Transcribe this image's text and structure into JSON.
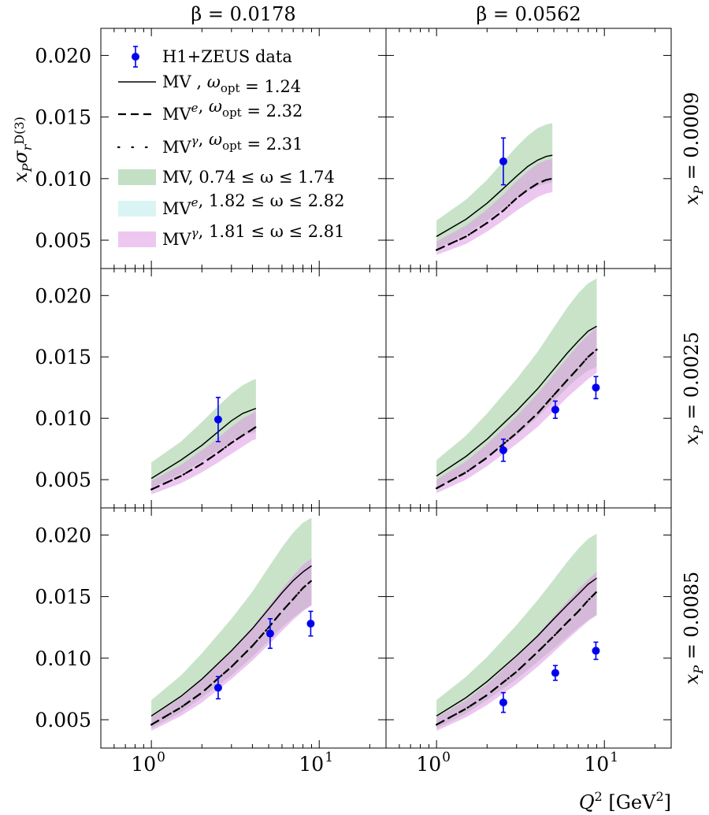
{
  "chart_data": {
    "type": "line",
    "grid": false,
    "x_scale": "log",
    "xlim": [
      0.5,
      25
    ],
    "ylim": [
      0.0027,
      0.0222
    ],
    "xlabel": "Q² [GeV²]",
    "ylabel": "x_P σ_r^D(3)",
    "x_ticks": [
      {
        "value": 1,
        "base": "10",
        "exp": "0"
      },
      {
        "value": 10,
        "base": "10",
        "exp": "1"
      }
    ],
    "y_ticks": [
      {
        "value": 0.005,
        "label": "0.005"
      },
      {
        "value": 0.01,
        "label": "0.010"
      },
      {
        "value": 0.015,
        "label": "0.015"
      },
      {
        "value": 0.02,
        "label": "0.020"
      }
    ],
    "column_labels": [
      "β = 0.0178",
      "β = 0.0562"
    ],
    "row_labels": [
      "x_P = 0.0009",
      "x_P = 0.0025",
      "x_P = 0.0085"
    ],
    "legend": {
      "placement": "top-left",
      "entries": [
        {
          "key": "data",
          "style": "point",
          "label": "H1+ZEUS data"
        },
        {
          "key": "mv",
          "style": "solid",
          "label": "MV , ω_opt = 1.24"
        },
        {
          "key": "mve",
          "style": "dashed",
          "label": "MV^e, ω_opt = 2.32"
        },
        {
          "key": "mvg",
          "style": "dotted",
          "label": "MV^γ, ω_opt = 2.31"
        },
        {
          "key": "band_mv",
          "style": "band",
          "color": "#9ccc9c",
          "label": "MV, 0.74 ≤ ω ≤ 1.74"
        },
        {
          "key": "band_mve",
          "style": "band",
          "color": "#c2ecec",
          "label": "MV^e, 1.82 ≤ ω ≤ 2.82"
        },
        {
          "key": "band_mvg",
          "style": "band",
          "color": "#e2a2e8",
          "label": "MV^γ, 1.81 ≤ ω ≤ 2.81"
        }
      ]
    },
    "colors": {
      "band_mv": "#9ccc9c",
      "band_mvg": "#dd99e4",
      "data": "#0000ee",
      "curve": "#000000"
    },
    "panels": [
      {
        "row": 0,
        "col": 0,
        "x": [],
        "mv": [],
        "mv_lo": [],
        "mv_hi": [],
        "mve": [],
        "mvg": [],
        "mvg_lo": [],
        "mvg_hi": [],
        "data": []
      },
      {
        "row": 0,
        "col": 1,
        "x": [
          1.0,
          1.5,
          2.0,
          2.5,
          3.0,
          3.5,
          4.0,
          4.5,
          4.9
        ],
        "mv": [
          0.0053,
          0.0067,
          0.008,
          0.0092,
          0.0102,
          0.011,
          0.0115,
          0.0118,
          0.0119
        ],
        "mv_lo": [
          0.0043,
          0.0055,
          0.0066,
          0.0076,
          0.0084,
          0.009,
          0.0094,
          0.0096,
          0.0097
        ],
        "mv_hi": [
          0.0066,
          0.0083,
          0.0099,
          0.0114,
          0.0126,
          0.0135,
          0.0141,
          0.0144,
          0.0145
        ],
        "mve": [
          0.0042,
          0.0053,
          0.0064,
          0.0074,
          0.0084,
          0.0091,
          0.0096,
          0.0099,
          0.01
        ],
        "mvg": [
          0.0042,
          0.0053,
          0.0064,
          0.0074,
          0.0084,
          0.0091,
          0.0096,
          0.0099,
          0.01
        ],
        "mvg_lo": [
          0.0038,
          0.0047,
          0.0057,
          0.0066,
          0.0074,
          0.008,
          0.0085,
          0.0088,
          0.0089
        ],
        "mvg_hi": [
          0.0049,
          0.0062,
          0.0075,
          0.0087,
          0.0098,
          0.0106,
          0.0112,
          0.0115,
          0.0116
        ],
        "data": [
          {
            "x": 2.5,
            "y": 0.0114,
            "err": 0.0019
          }
        ]
      },
      {
        "row": 1,
        "col": 0,
        "x": [
          1.0,
          1.5,
          2.0,
          2.5,
          3.0,
          3.5,
          4.0,
          4.2
        ],
        "mv": [
          0.0051,
          0.0066,
          0.0078,
          0.0089,
          0.0098,
          0.0104,
          0.0107,
          0.0108
        ],
        "mv_lo": [
          0.0043,
          0.0055,
          0.0065,
          0.0074,
          0.0081,
          0.0086,
          0.0088,
          0.0089
        ],
        "mv_hi": [
          0.0064,
          0.0081,
          0.0097,
          0.011,
          0.012,
          0.0127,
          0.0131,
          0.0132
        ],
        "mve": [
          0.0042,
          0.0053,
          0.0063,
          0.0072,
          0.008,
          0.0086,
          0.0091,
          0.0093
        ],
        "mvg": [
          0.0042,
          0.0053,
          0.0063,
          0.0072,
          0.008,
          0.0086,
          0.0091,
          0.0093
        ],
        "mvg_lo": [
          0.0038,
          0.0047,
          0.0056,
          0.0064,
          0.0071,
          0.0077,
          0.0082,
          0.0083
        ],
        "mvg_hi": [
          0.0049,
          0.0062,
          0.0074,
          0.0084,
          0.0093,
          0.01,
          0.0104,
          0.0106
        ],
        "data": [
          {
            "x": 2.5,
            "y": 0.0099,
            "err": 0.0018
          }
        ]
      },
      {
        "row": 1,
        "col": 1,
        "x": [
          1.0,
          1.5,
          2.0,
          3.0,
          4.0,
          5.0,
          6.0,
          7.0,
          8.0,
          9.0
        ],
        "mv": [
          0.0053,
          0.0069,
          0.0083,
          0.0106,
          0.0124,
          0.014,
          0.0153,
          0.0163,
          0.0171,
          0.0175
        ],
        "mv_lo": [
          0.0043,
          0.0056,
          0.0068,
          0.0086,
          0.0101,
          0.0114,
          0.0125,
          0.0133,
          0.0139,
          0.0142
        ],
        "mv_hi": [
          0.0066,
          0.0086,
          0.0104,
          0.0132,
          0.0154,
          0.0174,
          0.019,
          0.0202,
          0.021,
          0.0214
        ],
        "mve": [
          0.0043,
          0.0056,
          0.0068,
          0.0088,
          0.0104,
          0.0119,
          0.0131,
          0.0141,
          0.015,
          0.0156
        ],
        "mvg": [
          0.0043,
          0.0056,
          0.0068,
          0.0088,
          0.0104,
          0.0119,
          0.0131,
          0.0141,
          0.015,
          0.0156
        ],
        "mvg_lo": [
          0.0039,
          0.005,
          0.0061,
          0.0079,
          0.0093,
          0.0106,
          0.0117,
          0.0125,
          0.0132,
          0.0137
        ],
        "mvg_hi": [
          0.005,
          0.0065,
          0.0079,
          0.0102,
          0.012,
          0.0136,
          0.0149,
          0.016,
          0.0168,
          0.0174
        ],
        "data": [
          {
            "x": 2.5,
            "y": 0.0074,
            "err": 0.0009
          },
          {
            "x": 5.1,
            "y": 0.0107,
            "err": 0.0007
          },
          {
            "x": 8.9,
            "y": 0.0125,
            "err": 0.0009
          }
        ]
      },
      {
        "row": 2,
        "col": 0,
        "x": [
          1.0,
          1.5,
          2.0,
          3.0,
          4.0,
          5.0,
          6.0,
          7.0,
          8.0,
          9.0
        ],
        "mv": [
          0.0053,
          0.0069,
          0.0083,
          0.0106,
          0.0124,
          0.014,
          0.0153,
          0.0163,
          0.017,
          0.0175
        ],
        "mv_lo": [
          0.0043,
          0.0056,
          0.0068,
          0.0086,
          0.0101,
          0.0114,
          0.0125,
          0.0133,
          0.0139,
          0.0143
        ],
        "mv_hi": [
          0.0066,
          0.0086,
          0.0104,
          0.0132,
          0.0154,
          0.0174,
          0.019,
          0.0202,
          0.021,
          0.0214
        ],
        "mve": [
          0.0046,
          0.006,
          0.0072,
          0.0093,
          0.011,
          0.0125,
          0.0138,
          0.0148,
          0.0157,
          0.0163
        ],
        "mvg": [
          0.0046,
          0.006,
          0.0072,
          0.0093,
          0.011,
          0.0125,
          0.0138,
          0.0148,
          0.0157,
          0.0163
        ],
        "mvg_lo": [
          0.0041,
          0.0053,
          0.0064,
          0.0083,
          0.0098,
          0.0111,
          0.0122,
          0.0131,
          0.0138,
          0.0143
        ],
        "mvg_hi": [
          0.0052,
          0.0068,
          0.0082,
          0.0106,
          0.0125,
          0.0142,
          0.0156,
          0.0167,
          0.0176,
          0.0181
        ],
        "data": [
          {
            "x": 2.5,
            "y": 0.0076,
            "err": 0.0009
          },
          {
            "x": 5.1,
            "y": 0.012,
            "err": 0.0012
          },
          {
            "x": 8.9,
            "y": 0.0128,
            "err": 0.001
          }
        ]
      },
      {
        "row": 2,
        "col": 1,
        "x": [
          1.0,
          1.5,
          2.0,
          3.0,
          4.0,
          5.0,
          6.0,
          7.0,
          8.0,
          9.0
        ],
        "mv": [
          0.0053,
          0.0068,
          0.0081,
          0.0102,
          0.0118,
          0.0132,
          0.0143,
          0.0152,
          0.016,
          0.0165
        ],
        "mv_lo": [
          0.0043,
          0.0055,
          0.0066,
          0.0083,
          0.0097,
          0.0108,
          0.0117,
          0.0125,
          0.0131,
          0.0135
        ],
        "mv_hi": [
          0.0066,
          0.0085,
          0.0101,
          0.0127,
          0.0147,
          0.0164,
          0.0178,
          0.0189,
          0.0197,
          0.0201
        ],
        "mve": [
          0.0046,
          0.0059,
          0.007,
          0.0089,
          0.0105,
          0.0118,
          0.0129,
          0.0138,
          0.0147,
          0.0154
        ],
        "mvg": [
          0.0046,
          0.0059,
          0.007,
          0.0089,
          0.0105,
          0.0118,
          0.0129,
          0.0138,
          0.0147,
          0.0154
        ],
        "mvg_lo": [
          0.0041,
          0.0052,
          0.0062,
          0.0079,
          0.0093,
          0.0105,
          0.0115,
          0.0123,
          0.013,
          0.0135
        ],
        "mvg_hi": [
          0.0052,
          0.0066,
          0.0079,
          0.0101,
          0.0119,
          0.0134,
          0.0146,
          0.0156,
          0.0164,
          0.017
        ],
        "data": [
          {
            "x": 2.5,
            "y": 0.0064,
            "err": 0.0008
          },
          {
            "x": 5.1,
            "y": 0.0088,
            "err": 0.0006
          },
          {
            "x": 8.9,
            "y": 0.0106,
            "err": 0.0007
          }
        ]
      }
    ]
  }
}
